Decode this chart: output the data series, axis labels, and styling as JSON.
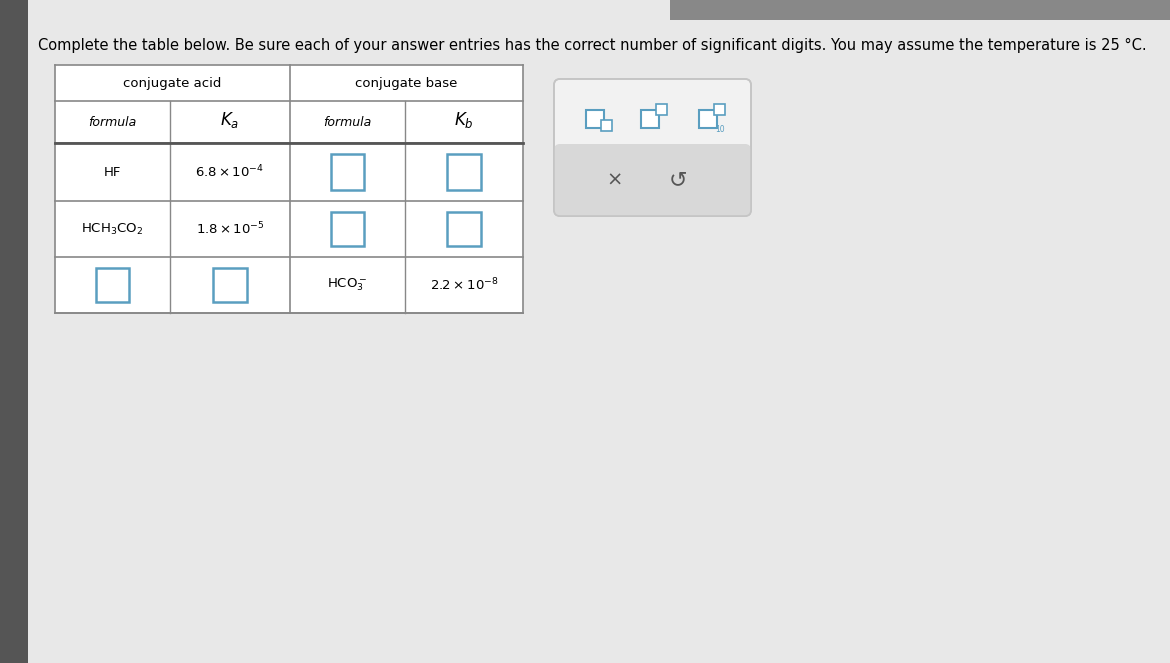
{
  "title": "Complete the table below. Be sure each of your answer entries has the correct number of significant digits. You may assume the temperature is 25 °C.",
  "title_fontsize": 10.5,
  "page_bg": "#c8c8c8",
  "content_bg": "#e8e8e8",
  "table_bg": "#ffffff",
  "left_strip_color": "#555555",
  "col_header1": "conjugate acid",
  "col_header2": "conjugate base",
  "subheader_formula": "formula",
  "subheader_Ka": "$K_a$",
  "subheader_Kb": "$K_b$",
  "rows": [
    [
      "HF",
      "6.8 × 10$^{-4}$",
      "answer",
      "answer"
    ],
    [
      "HCH$_3$CO$_2$",
      "1.8 × 10$^{-5}$",
      "answer",
      "answer"
    ],
    [
      "answer",
      "answer",
      "HCO$_3^-$",
      "2.2 × 10$^{-8}$"
    ]
  ],
  "answer_box_color": "#5a9ec0",
  "toolbar_bg": "#f0f0f0",
  "toolbar_border": "#c0c0c0",
  "toolbar_bottom_bg": "#d8d8d8",
  "icon_color": "#5a9ec0"
}
